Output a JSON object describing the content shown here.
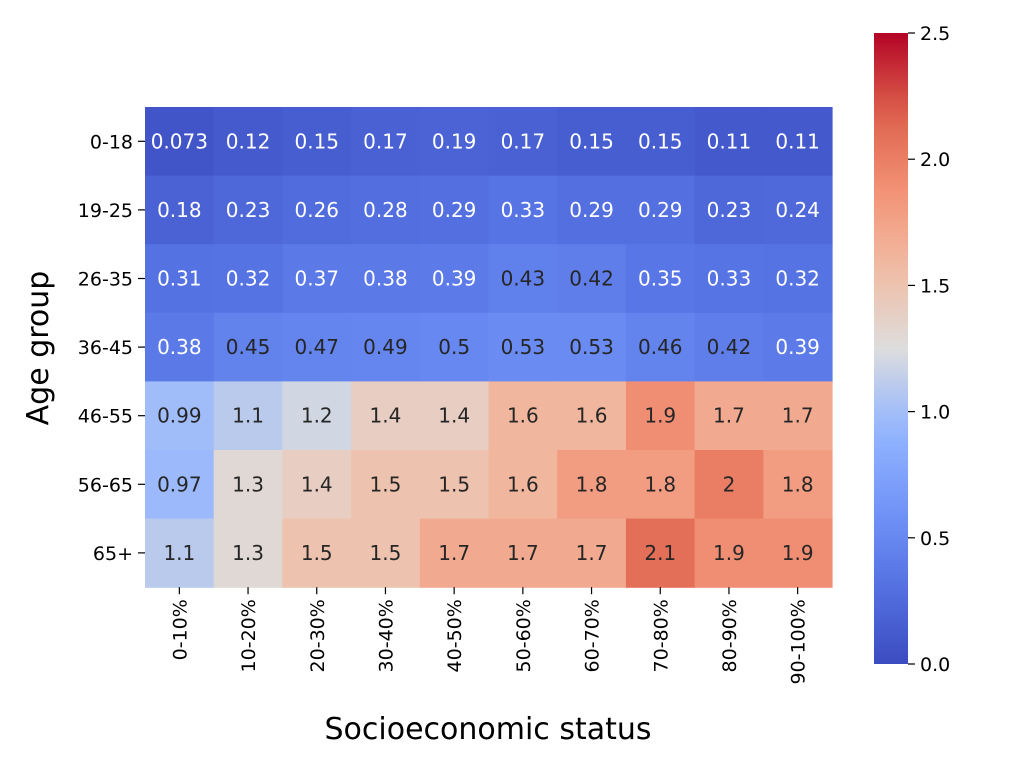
{
  "chart_data": {
    "type": "heatmap",
    "xlabel": "Socioeconomic status",
    "ylabel": "Age group",
    "x_categories": [
      "0-10%",
      "10-20%",
      "20-30%",
      "30-40%",
      "40-50%",
      "50-60%",
      "60-70%",
      "70-80%",
      "80-90%",
      "90-100%"
    ],
    "y_categories": [
      "0-18",
      "19-25",
      "26-35",
      "36-45",
      "46-55",
      "56-65",
      "65+"
    ],
    "values": [
      [
        0.073,
        0.12,
        0.15,
        0.17,
        0.19,
        0.17,
        0.15,
        0.15,
        0.11,
        0.11
      ],
      [
        0.18,
        0.23,
        0.26,
        0.28,
        0.29,
        0.33,
        0.29,
        0.29,
        0.23,
        0.24
      ],
      [
        0.31,
        0.32,
        0.37,
        0.38,
        0.39,
        0.43,
        0.42,
        0.35,
        0.33,
        0.32
      ],
      [
        0.38,
        0.45,
        0.47,
        0.49,
        0.5,
        0.53,
        0.53,
        0.46,
        0.42,
        0.39
      ],
      [
        0.99,
        1.1,
        1.2,
        1.4,
        1.4,
        1.6,
        1.6,
        1.9,
        1.7,
        1.7
      ],
      [
        0.97,
        1.3,
        1.4,
        1.5,
        1.5,
        1.6,
        1.8,
        1.8,
        2,
        1.8
      ],
      [
        1.1,
        1.3,
        1.5,
        1.5,
        1.7,
        1.7,
        1.7,
        2.1,
        1.9,
        1.9
      ]
    ],
    "annotations": [
      [
        "0.073",
        "0.12",
        "0.15",
        "0.17",
        "0.19",
        "0.17",
        "0.15",
        "0.15",
        "0.11",
        "0.11"
      ],
      [
        "0.18",
        "0.23",
        "0.26",
        "0.28",
        "0.29",
        "0.33",
        "0.29",
        "0.29",
        "0.23",
        "0.24"
      ],
      [
        "0.31",
        "0.32",
        "0.37",
        "0.38",
        "0.39",
        "0.43",
        "0.42",
        "0.35",
        "0.33",
        "0.32"
      ],
      [
        "0.38",
        "0.45",
        "0.47",
        "0.49",
        "0.5",
        "0.53",
        "0.53",
        "0.46",
        "0.42",
        "0.39"
      ],
      [
        "0.99",
        "1.1",
        "1.2",
        "1.4",
        "1.4",
        "1.6",
        "1.6",
        "1.9",
        "1.7",
        "1.7"
      ],
      [
        "0.97",
        "1.3",
        "1.4",
        "1.5",
        "1.5",
        "1.6",
        "1.8",
        "1.8",
        "2",
        "1.8"
      ],
      [
        "1.1",
        "1.3",
        "1.5",
        "1.5",
        "1.7",
        "1.7",
        "1.7",
        "2.1",
        "1.9",
        "1.9"
      ]
    ],
    "colormap": "coolwarm",
    "vmin": 0.0,
    "vmax": 2.5,
    "colorbar_ticks": [
      0.0,
      0.5,
      1.0,
      1.5,
      2.0,
      2.5
    ],
    "colorbar_tick_labels": [
      "0.0",
      "0.5",
      "1.0",
      "1.5",
      "2.0",
      "2.5"
    ]
  }
}
